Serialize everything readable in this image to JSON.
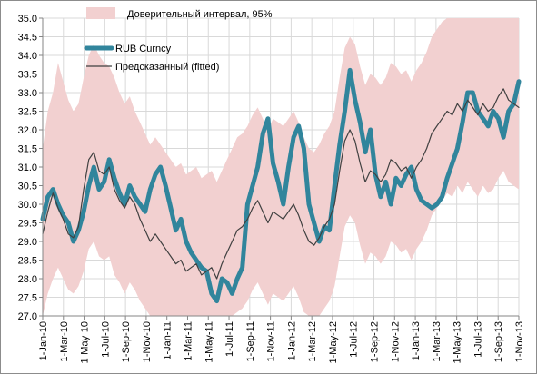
{
  "chart_data": {
    "type": "line",
    "title": "",
    "xlabel": "",
    "ylabel": "",
    "ylim": [
      27.0,
      35.0
    ],
    "yticks": [
      "27.0",
      "27.5",
      "28.0",
      "28.5",
      "29.0",
      "29.5",
      "30.0",
      "30.5",
      "31.0",
      "31.5",
      "32.0",
      "32.5",
      "33.0",
      "33.5",
      "34.0",
      "34.5",
      "35.0"
    ],
    "xticks": [
      "1-Jan-10",
      "1-Mar-10",
      "1-May-10",
      "1-Jul-10",
      "1-Sep-10",
      "1-Nov-10",
      "1-Jan-11",
      "1-Mar-11",
      "1-May-11",
      "1-Jul-11",
      "1-Sep-11",
      "1-Nov-11",
      "1-Jan-12",
      "1-Mar-12",
      "1-May-12",
      "1-Jul-12",
      "1-Sep-12",
      "1-Nov-12",
      "1-Jan-13",
      "1-Mar-13",
      "1-May-13",
      "1-Jul-13",
      "1-Sep-13",
      "1-Nov-13"
    ],
    "grid": true,
    "legend": [
      {
        "label": "Доверительный  интервал, 95%",
        "color": "#f2d0d0",
        "kind": "area"
      },
      {
        "label": "RUB Curncy",
        "color": "#31859c",
        "kind": "thick-line"
      },
      {
        "label": "Предсказанный (fitted)",
        "color": "#404040",
        "kind": "line"
      }
    ],
    "series": [
      {
        "name": "RUB Curncy",
        "color": "#31859c",
        "values": [
          29.6,
          30.2,
          30.4,
          30.0,
          29.7,
          29.5,
          29.0,
          29.3,
          29.8,
          30.5,
          31.0,
          30.4,
          30.6,
          31.2,
          30.7,
          30.3,
          30.0,
          30.5,
          30.2,
          30.0,
          29.8,
          30.4,
          30.8,
          31.0,
          30.5,
          29.9,
          29.3,
          29.6,
          29.0,
          28.7,
          28.5,
          28.3,
          28.2,
          27.6,
          27.4,
          28.0,
          27.9,
          27.6,
          28.0,
          28.3,
          30.0,
          30.5,
          31.0,
          31.9,
          32.3,
          31.1,
          30.6,
          30.0,
          31.0,
          31.8,
          32.1,
          31.5,
          30.0,
          29.5,
          29.0,
          29.4,
          29.3,
          30.5,
          31.6,
          32.5,
          33.6,
          32.8,
          32.2,
          31.4,
          32.0,
          30.8,
          30.2,
          30.6,
          30.0,
          30.7,
          30.5,
          30.8,
          31.0,
          30.4,
          30.1,
          30.0,
          29.9,
          30.0,
          30.2,
          30.7,
          31.1,
          31.5,
          32.2,
          33.0,
          33.0,
          32.5,
          32.3,
          32.1,
          32.5,
          32.3,
          31.8,
          32.5,
          32.7,
          33.3
        ]
      },
      {
        "name": "Предсказанный (fitted)",
        "color": "#404040",
        "values": [
          29.2,
          29.8,
          30.3,
          29.9,
          29.6,
          29.2,
          29.1,
          29.4,
          30.4,
          31.2,
          31.4,
          30.9,
          30.8,
          31.0,
          30.4,
          30.1,
          29.9,
          30.2,
          30.0,
          29.6,
          29.3,
          29.0,
          29.2,
          29.0,
          28.8,
          28.6,
          28.4,
          28.5,
          28.2,
          28.3,
          28.4,
          28.1,
          28.2,
          28.3,
          28.0,
          28.4,
          28.7,
          29.0,
          29.3,
          29.4,
          29.6,
          29.9,
          30.1,
          29.8,
          29.5,
          29.8,
          29.7,
          29.6,
          29.8,
          30.0,
          29.7,
          29.3,
          29.0,
          28.9,
          29.1,
          29.4,
          29.6,
          30.0,
          30.9,
          31.7,
          32.0,
          31.7,
          31.1,
          30.6,
          30.9,
          30.8,
          30.6,
          30.8,
          31.2,
          31.1,
          30.9,
          31.0,
          30.7,
          31.0,
          31.2,
          31.5,
          31.9,
          32.1,
          32.3,
          32.5,
          32.4,
          32.7,
          32.5,
          32.8,
          32.6,
          32.4,
          32.7,
          32.5,
          32.6,
          32.9,
          33.1,
          32.8,
          32.7,
          32.6
        ]
      }
    ],
    "band": {
      "name": "Доверительный  интервал, 95%",
      "color": "#f2d0d0",
      "upper": [
        31.5,
        32.5,
        33.0,
        33.8,
        33.3,
        32.8,
        32.5,
        32.7,
        33.4,
        34.0,
        34.3,
        34.0,
        33.8,
        33.7,
        33.4,
        33.0,
        32.7,
        32.9,
        32.5,
        32.2,
        31.9,
        31.6,
        31.8,
        31.6,
        31.4,
        31.2,
        31.0,
        31.1,
        30.8,
        30.9,
        31.0,
        30.7,
        30.8,
        30.9,
        30.6,
        30.9,
        31.2,
        31.5,
        31.8,
        31.9,
        32.1,
        32.4,
        32.6,
        32.3,
        32.0,
        32.3,
        32.2,
        32.1,
        32.3,
        32.5,
        32.2,
        31.8,
        31.5,
        31.4,
        31.6,
        31.9,
        32.1,
        32.5,
        33.4,
        34.2,
        34.5,
        34.3,
        33.7,
        33.2,
        33.5,
        33.4,
        33.2,
        33.4,
        33.8,
        33.7,
        33.5,
        33.6,
        33.3,
        33.6,
        33.8,
        34.1,
        34.5,
        34.7,
        34.9,
        35.0,
        35.0,
        35.0,
        35.0,
        35.0,
        35.0,
        35.0,
        35.0,
        35.0,
        35.0,
        35.0,
        35.0,
        35.0,
        35.0,
        35.0
      ],
      "lower": [
        27.0,
        27.6,
        28.0,
        28.3,
        28.0,
        27.7,
        27.6,
        27.8,
        28.2,
        28.8,
        29.0,
        28.6,
        28.5,
        28.6,
        28.1,
        27.9,
        27.6,
        27.9,
        27.7,
        27.4,
        27.2,
        27.0,
        27.0,
        27.0,
        27.0,
        27.0,
        27.0,
        27.0,
        27.0,
        27.0,
        27.0,
        27.0,
        27.0,
        27.0,
        27.0,
        27.0,
        27.0,
        27.0,
        27.1,
        27.2,
        27.4,
        27.7,
        27.9,
        27.6,
        27.3,
        27.6,
        27.5,
        27.4,
        27.6,
        27.8,
        27.5,
        27.1,
        27.0,
        27.0,
        27.0,
        27.2,
        27.4,
        27.8,
        28.6,
        29.4,
        29.7,
        29.5,
        28.9,
        28.4,
        28.7,
        28.6,
        28.4,
        28.6,
        29.0,
        28.9,
        28.7,
        28.8,
        28.5,
        28.8,
        29.0,
        29.3,
        29.7,
        29.9,
        30.1,
        30.3,
        30.2,
        30.5,
        30.3,
        30.6,
        30.4,
        30.2,
        30.5,
        30.3,
        30.4,
        30.7,
        30.9,
        30.6,
        30.5,
        30.4
      ]
    }
  }
}
